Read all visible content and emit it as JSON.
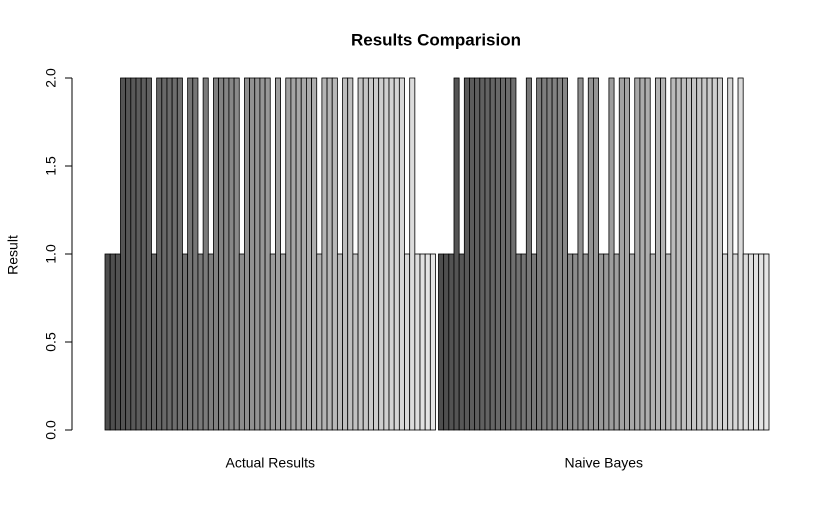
{
  "chart_data": {
    "type": "grouped-bar",
    "title": "Results Comparision",
    "y_label": "Result",
    "categories": [
      "Actual Results",
      "Naive Bayes"
    ],
    "values": [
      [
        1,
        1,
        1,
        2,
        2,
        2,
        2,
        2,
        2,
        1,
        2,
        2,
        2,
        2,
        2,
        1,
        2,
        2,
        1,
        2,
        1,
        2,
        2,
        2,
        2,
        2,
        1,
        2,
        2,
        2,
        2,
        2,
        1,
        2,
        1,
        2,
        2,
        2,
        2,
        2,
        2,
        1,
        2,
        2,
        2,
        1,
        2,
        2,
        1,
        2,
        2,
        2,
        2,
        2,
        2,
        2,
        2,
        2,
        1,
        2,
        1,
        1,
        1,
        1
      ],
      [
        1,
        1,
        1,
        2,
        1,
        2,
        2,
        2,
        2,
        2,
        2,
        2,
        2,
        2,
        2,
        1,
        1,
        2,
        1,
        2,
        2,
        2,
        2,
        2,
        2,
        1,
        1,
        2,
        1,
        2,
        2,
        1,
        1,
        2,
        1,
        2,
        2,
        1,
        2,
        2,
        2,
        1,
        2,
        2,
        1,
        2,
        2,
        2,
        2,
        2,
        2,
        2,
        2,
        2,
        2,
        1,
        2,
        1,
        2,
        1,
        1,
        1,
        1,
        1
      ]
    ],
    "color_range": [
      "#4d4d4d",
      "#e6e6e6"
    ],
    "ylim": [
      0,
      2
    ],
    "yticks": [
      {
        "value": 0,
        "label": "0.0"
      },
      {
        "value": 0.5,
        "label": "0.5"
      },
      {
        "value": 1,
        "label": "1.0"
      },
      {
        "value": 1.5,
        "label": "1.5"
      },
      {
        "value": 2,
        "label": "2.0"
      }
    ]
  }
}
